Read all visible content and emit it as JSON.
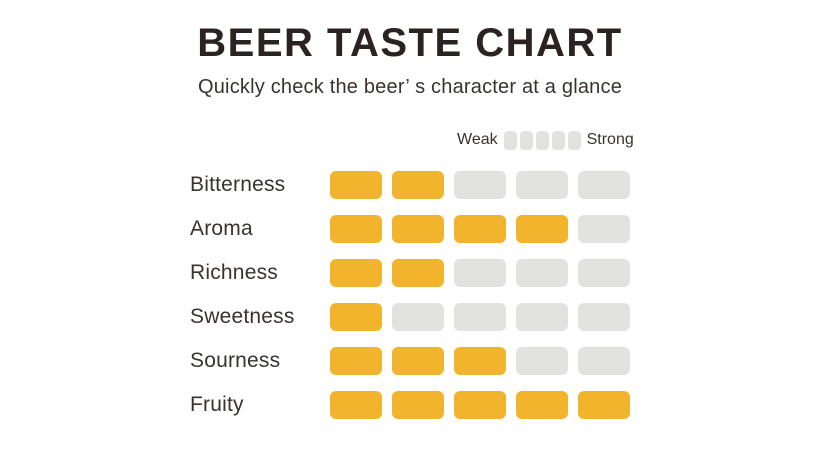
{
  "title": "BEER TASTE CHART",
  "subtitle": "Quickly check the beer’ s character at a glance",
  "legend": {
    "weak_label": "Weak",
    "strong_label": "Strong",
    "segments": 5
  },
  "colors": {
    "filled": "#f2b42c",
    "empty": "#e2e2e1",
    "title_text": "#2b2321",
    "body_text": "#3a3230"
  },
  "chart_data": {
    "type": "bar",
    "title": "BEER TASTE CHART",
    "subtitle": "Quickly check the beer’ s character at a glance",
    "categories": [
      "Bitterness",
      "Aroma",
      "Richness",
      "Sweetness",
      "Sourness",
      "Fruity"
    ],
    "values": [
      2,
      4,
      2,
      1,
      3,
      5
    ],
    "scale": {
      "min": 0,
      "max": 5,
      "weak_end_label": "Weak",
      "strong_end_label": "Strong"
    },
    "orientation": "horizontal",
    "style": "segmented-blocks",
    "grid": false,
    "legend_position": "top-right"
  }
}
